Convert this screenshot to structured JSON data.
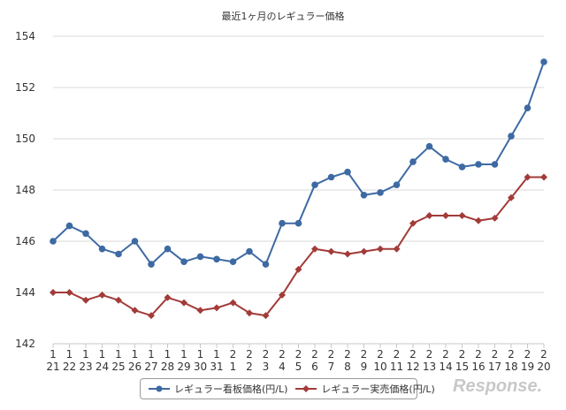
{
  "chart_data": {
    "type": "line",
    "title": "最近1ヶ月のレギュラー価格",
    "ylim": [
      142,
      154
    ],
    "yticks": [
      142,
      144,
      146,
      148,
      150,
      152,
      154
    ],
    "categories": [
      [
        "1",
        "21"
      ],
      [
        "1",
        "22"
      ],
      [
        "1",
        "23"
      ],
      [
        "1",
        "24"
      ],
      [
        "1",
        "25"
      ],
      [
        "1",
        "26"
      ],
      [
        "1",
        "27"
      ],
      [
        "1",
        "28"
      ],
      [
        "1",
        "29"
      ],
      [
        "1",
        "30"
      ],
      [
        "1",
        "31"
      ],
      [
        "2",
        "1"
      ],
      [
        "2",
        "2"
      ],
      [
        "2",
        "3"
      ],
      [
        "2",
        "4"
      ],
      [
        "2",
        "5"
      ],
      [
        "2",
        "6"
      ],
      [
        "2",
        "7"
      ],
      [
        "2",
        "8"
      ],
      [
        "2",
        "9"
      ],
      [
        "2",
        "10"
      ],
      [
        "2",
        "11"
      ],
      [
        "2",
        "12"
      ],
      [
        "2",
        "13"
      ],
      [
        "2",
        "14"
      ],
      [
        "2",
        "15"
      ],
      [
        "2",
        "16"
      ],
      [
        "2",
        "17"
      ],
      [
        "2",
        "18"
      ],
      [
        "2",
        "19"
      ],
      [
        "2",
        "20"
      ]
    ],
    "grid": true,
    "legend_position": "bottom",
    "series": [
      {
        "name": "レギュラー看板価格(円/L)",
        "color": "#3e6aa3",
        "marker": "circle",
        "values": [
          146.0,
          146.6,
          146.3,
          145.7,
          145.5,
          146.0,
          145.1,
          145.7,
          145.2,
          145.4,
          145.3,
          145.2,
          145.6,
          145.1,
          146.7,
          146.7,
          148.2,
          148.5,
          148.7,
          147.8,
          147.9,
          148.2,
          149.1,
          149.7,
          149.2,
          148.9,
          149.0,
          149.0,
          150.1,
          151.2,
          153.0
        ]
      },
      {
        "name": "レギュラー実売価格(円/L)",
        "color": "#a23b39",
        "marker": "diamond",
        "values": [
          144.0,
          144.0,
          143.7,
          143.9,
          143.7,
          143.3,
          143.1,
          143.8,
          143.6,
          143.3,
          143.4,
          143.6,
          143.2,
          143.1,
          143.9,
          144.9,
          145.7,
          145.6,
          145.5,
          145.6,
          145.7,
          145.7,
          146.7,
          147.0,
          147.0,
          147.0,
          146.8,
          146.9,
          147.7,
          148.5,
          148.5
        ]
      }
    ]
  },
  "watermark": "Response."
}
